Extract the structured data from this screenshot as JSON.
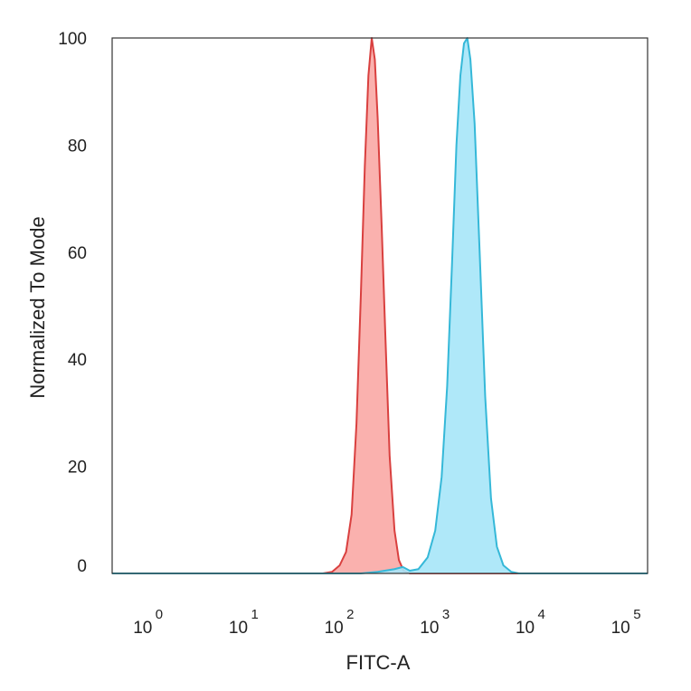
{
  "chart_data": {
    "type": "area",
    "title": "",
    "xlabel": "FITC-A",
    "ylabel": "Normalized To Mode",
    "xscale": "log",
    "xlim": [
      0.5,
      200000
    ],
    "ylim": [
      0,
      100
    ],
    "x_ticks": [
      {
        "base": "10",
        "exp": "0",
        "value": 1
      },
      {
        "base": "10",
        "exp": "1",
        "value": 10
      },
      {
        "base": "10",
        "exp": "2",
        "value": 100
      },
      {
        "base": "10",
        "exp": "3",
        "value": 1000
      },
      {
        "base": "10",
        "exp": "4",
        "value": 10000
      },
      {
        "base": "10",
        "exp": "5",
        "value": 100000
      }
    ],
    "y_ticks": [
      {
        "label": "0",
        "value": 0
      },
      {
        "label": "20",
        "value": 20
      },
      {
        "label": "40",
        "value": 40
      },
      {
        "label": "60",
        "value": 60
      },
      {
        "label": "80",
        "value": 80
      },
      {
        "label": "100",
        "value": 100
      }
    ],
    "grid": false,
    "series": [
      {
        "color": "#d9403f",
        "fill": "#f9a9a5",
        "points": [
          [
            0.5,
            0
          ],
          [
            80,
            0
          ],
          [
            100,
            0.3
          ],
          [
            120,
            1.5
          ],
          [
            140,
            4
          ],
          [
            160,
            11
          ],
          [
            180,
            28
          ],
          [
            200,
            52
          ],
          [
            220,
            76
          ],
          [
            240,
            93
          ],
          [
            260,
            100
          ],
          [
            280,
            96
          ],
          [
            300,
            85
          ],
          [
            330,
            65
          ],
          [
            360,
            45
          ],
          [
            400,
            22
          ],
          [
            450,
            8
          ],
          [
            500,
            2.5
          ],
          [
            560,
            0.5
          ],
          [
            650,
            0
          ],
          [
            200000,
            0
          ]
        ]
      },
      {
        "color": "#35b8d8",
        "fill": "#a6e6f8",
        "points": [
          [
            0.5,
            0
          ],
          [
            200,
            0
          ],
          [
            300,
            0.3
          ],
          [
            450,
            0.8
          ],
          [
            550,
            1.2
          ],
          [
            650,
            0.5
          ],
          [
            800,
            0.8
          ],
          [
            1000,
            3
          ],
          [
            1200,
            8
          ],
          [
            1400,
            18
          ],
          [
            1600,
            35
          ],
          [
            1800,
            58
          ],
          [
            2000,
            80
          ],
          [
            2200,
            93
          ],
          [
            2400,
            99
          ],
          [
            2600,
            100
          ],
          [
            2800,
            96
          ],
          [
            3100,
            84
          ],
          [
            3500,
            60
          ],
          [
            4000,
            33
          ],
          [
            4600,
            14
          ],
          [
            5300,
            5
          ],
          [
            6200,
            1.5
          ],
          [
            7500,
            0.3
          ],
          [
            9000,
            0
          ],
          [
            200000,
            0
          ]
        ]
      }
    ]
  }
}
